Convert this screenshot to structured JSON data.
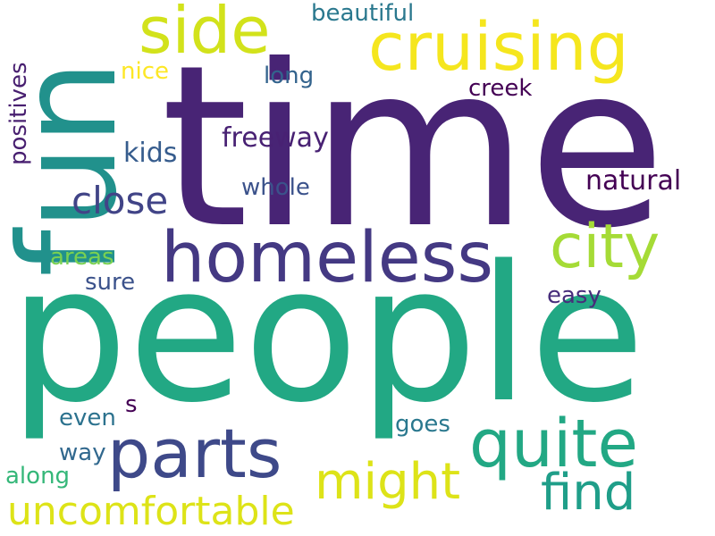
{
  "words": {
    "time": {
      "text": "time",
      "color": "#482475"
    },
    "people": {
      "text": "people",
      "color": "#22a884"
    },
    "fun": {
      "text": "fun",
      "color": "#21918c"
    },
    "homeless": {
      "text": "homeless",
      "color": "#443983"
    },
    "cruising": {
      "text": "cruising",
      "color": "#f5e61e"
    },
    "side": {
      "text": "side",
      "color": "#d2e21b"
    },
    "parts": {
      "text": "parts",
      "color": "#3e4989"
    },
    "quite": {
      "text": "quite",
      "color": "#22a884"
    },
    "city": {
      "text": "city",
      "color": "#a5db36"
    },
    "might": {
      "text": "might",
      "color": "#dde318"
    },
    "find": {
      "text": "find",
      "color": "#1f9e89"
    },
    "uncomfortable": {
      "text": "uncomfortable",
      "color": "#dde318"
    },
    "close": {
      "text": "close",
      "color": "#414487"
    },
    "beautiful": {
      "text": "beautiful",
      "color": "#2a788e"
    },
    "nice": {
      "text": "nice",
      "color": "#fde725"
    },
    "long": {
      "text": "long",
      "color": "#33638d"
    },
    "positives": {
      "text": "positives",
      "color": "#481f70"
    },
    "creek": {
      "text": "creek",
      "color": "#440154"
    },
    "freeway": {
      "text": "freeway",
      "color": "#482173"
    },
    "kids": {
      "text": "kids",
      "color": "#365c8d"
    },
    "natural": {
      "text": "natural",
      "color": "#440154"
    },
    "whole": {
      "text": "whole",
      "color": "#3b528b"
    },
    "areas": {
      "text": "areas",
      "color": "#7ad151"
    },
    "sure": {
      "text": "sure",
      "color": "#3b528b"
    },
    "easy": {
      "text": "easy",
      "color": "#472d7b"
    },
    "s": {
      "text": "s",
      "color": "#440154"
    },
    "even": {
      "text": "even",
      "color": "#2c728e"
    },
    "goes": {
      "text": "goes",
      "color": "#2a788e"
    },
    "way": {
      "text": "way",
      "color": "#31688e"
    },
    "along": {
      "text": "along",
      "color": "#35b779"
    }
  }
}
